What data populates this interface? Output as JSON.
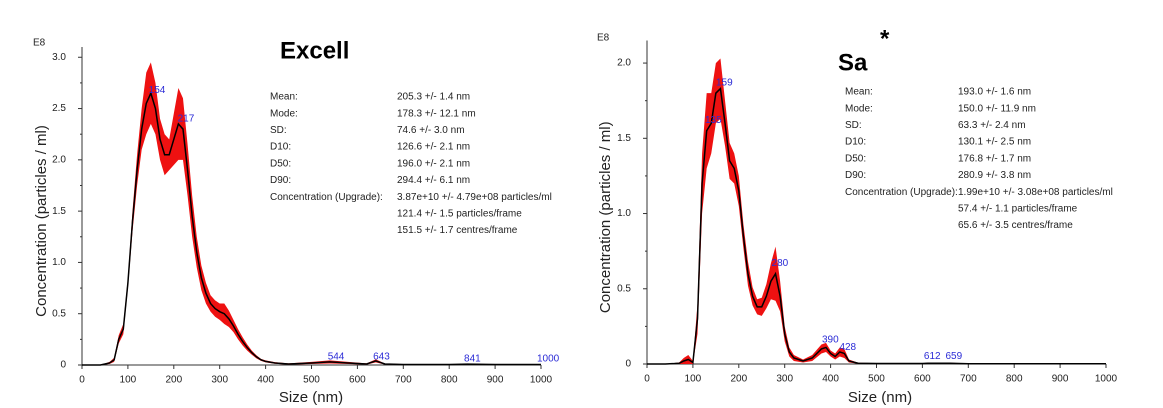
{
  "chart_data": [
    {
      "type": "line",
      "title": "Excell",
      "y_multiplier": "E8",
      "xlabel": "Size (nm)",
      "ylabel": "Concentration (particles / ml)",
      "xlim": [
        0,
        1000
      ],
      "xticks": [
        0,
        100,
        200,
        300,
        400,
        500,
        600,
        700,
        800,
        900,
        1000
      ],
      "ylim": [
        0,
        3.1
      ],
      "yticks": [
        0,
        0.5,
        {
          "value": 1,
          "label": "1.0"
        },
        1.5,
        {
          "value": 2,
          "label": "2.0"
        },
        2.5,
        {
          "value": 3,
          "label": "3.0"
        }
      ],
      "series": [
        {
          "color": "#000000",
          "band_color": "#ee1111",
          "x": [
            0,
            10,
            20,
            30,
            40,
            50,
            60,
            70,
            80,
            90,
            100,
            110,
            120,
            130,
            140,
            150,
            160,
            170,
            180,
            190,
            200,
            210,
            220,
            230,
            240,
            250,
            260,
            270,
            280,
            290,
            300,
            310,
            320,
            330,
            340,
            350,
            360,
            370,
            380,
            390,
            400,
            420,
            450,
            500,
            540,
            580,
            620,
            640,
            660,
            700,
            800,
            840,
            900,
            1000
          ],
          "values": [
            0,
            0,
            0,
            0,
            0,
            0.01,
            0.02,
            0.05,
            0.25,
            0.35,
            0.8,
            1.4,
            1.9,
            2.3,
            2.55,
            2.65,
            2.5,
            2.2,
            2.05,
            2.05,
            2.2,
            2.35,
            2.3,
            1.9,
            1.45,
            1.1,
            0.85,
            0.7,
            0.6,
            0.55,
            0.52,
            0.5,
            0.45,
            0.38,
            0.3,
            0.23,
            0.17,
            0.12,
            0.08,
            0.05,
            0.035,
            0.02,
            0.01,
            0.02,
            0.03,
            0.02,
            0.01,
            0.04,
            0.01,
            0.005,
            0.005,
            0.008,
            0.005,
            0.005
          ],
          "errors": [
            0.005,
            0.005,
            0.005,
            0.005,
            0.005,
            0.005,
            0.01,
            0.02,
            0.04,
            0.05,
            0.05,
            0.1,
            0.15,
            0.2,
            0.3,
            0.3,
            0.25,
            0.2,
            0.2,
            0.15,
            0.25,
            0.35,
            0.3,
            0.25,
            0.2,
            0.15,
            0.12,
            0.1,
            0.08,
            0.08,
            0.08,
            0.1,
            0.08,
            0.06,
            0.05,
            0.04,
            0.03,
            0.02,
            0.015,
            0.01,
            0.01,
            0.008,
            0.006,
            0.01,
            0.015,
            0.01,
            0.006,
            0.015,
            0.005,
            0.003,
            0.003,
            0.004,
            0.003,
            0.003
          ]
        }
      ],
      "peaks": [
        {
          "x": 154,
          "y": 2.65
        },
        {
          "x": 217,
          "y": 2.37
        },
        {
          "x": 544,
          "y": 0.05
        },
        {
          "x": 643,
          "y": 0.05
        },
        {
          "x": 841,
          "y": 0.03
        },
        {
          "x": 1000,
          "y": 0.03
        }
      ],
      "stats": [
        {
          "label": "Mean:",
          "value": "205.3 +/- 1.4 nm"
        },
        {
          "label": "Mode:",
          "value": "178.3 +/- 12.1 nm"
        },
        {
          "label": "SD:",
          "value": "74.6 +/- 3.0 nm"
        },
        {
          "label": "D10:",
          "value": "126.6 +/- 2.1 nm"
        },
        {
          "label": "D50:",
          "value": "196.0 +/- 2.1 nm"
        },
        {
          "label": "D90:",
          "value": "294.4 +/- 6.1 nm"
        },
        {
          "label": "Concentration (Upgrade):",
          "value": "3.87e+10 +/- 4.79e+08 particles/ml"
        },
        {
          "value": "121.4 +/- 1.5 particles/frame"
        },
        {
          "value": "151.5 +/- 1.7 centres/frame"
        }
      ]
    },
    {
      "type": "line",
      "title": "Sa",
      "title_superscript": "*",
      "y_multiplier": "E8",
      "xlabel": "Size (nm)",
      "ylabel": "Concentration (particles / ml)",
      "xlim": [
        0,
        1000
      ],
      "xticks": [
        0,
        100,
        200,
        300,
        400,
        500,
        600,
        700,
        800,
        900,
        1000
      ],
      "ylim": [
        0,
        2.15
      ],
      "yticks": [
        0,
        0.5,
        {
          "value": 1,
          "label": "1.0"
        },
        1.5,
        {
          "value": 2,
          "label": "2.0"
        }
      ],
      "series": [
        {
          "color": "#000000",
          "band_color": "#ee1111",
          "x": [
            0,
            10,
            20,
            30,
            40,
            50,
            60,
            70,
            80,
            90,
            100,
            110,
            120,
            130,
            140,
            150,
            160,
            170,
            180,
            190,
            200,
            210,
            220,
            230,
            240,
            250,
            260,
            270,
            280,
            290,
            300,
            310,
            320,
            340,
            360,
            380,
            390,
            400,
            410,
            420,
            430,
            440,
            460,
            500,
            600,
            612,
            660,
            700,
            1000
          ],
          "values": [
            0,
            0,
            0,
            0,
            0,
            0.002,
            0.003,
            0.005,
            0.02,
            0.03,
            0.01,
            0.3,
            1.2,
            1.55,
            1.6,
            1.8,
            1.83,
            1.6,
            1.35,
            1.3,
            1.15,
            0.85,
            0.6,
            0.45,
            0.38,
            0.38,
            0.45,
            0.55,
            0.6,
            0.45,
            0.2,
            0.08,
            0.04,
            0.02,
            0.04,
            0.1,
            0.11,
            0.07,
            0.05,
            0.08,
            0.07,
            0.02,
            0.005,
            0.003,
            0.003,
            0.005,
            0.005,
            0.002,
            0.002
          ],
          "errors": [
            0.002,
            0.002,
            0.002,
            0.002,
            0.002,
            0.002,
            0.003,
            0.005,
            0.02,
            0.03,
            0.01,
            0.1,
            0.2,
            0.25,
            0.2,
            0.2,
            0.2,
            0.15,
            0.12,
            0.1,
            0.1,
            0.08,
            0.08,
            0.06,
            0.05,
            0.06,
            0.08,
            0.12,
            0.18,
            0.1,
            0.05,
            0.03,
            0.02,
            0.01,
            0.02,
            0.03,
            0.03,
            0.02,
            0.02,
            0.03,
            0.03,
            0.01,
            0.003,
            0.002,
            0.002,
            0.003,
            0.003,
            0.001,
            0.001
          ]
        }
      ],
      "peaks": [
        {
          "x": 159,
          "y": 1.85
        },
        {
          "x": 135,
          "y": 1.6
        },
        {
          "x": 280,
          "y": 0.65
        },
        {
          "x": 390,
          "y": 0.14
        },
        {
          "x": 428,
          "y": 0.09
        },
        {
          "x": 612,
          "y": 0.03
        },
        {
          "x": 659,
          "y": 0.03
        }
      ],
      "stats": [
        {
          "label": "Mean:",
          "value": "193.0 +/- 1.6 nm"
        },
        {
          "label": "Mode:",
          "value": "150.0 +/- 11.9 nm"
        },
        {
          "label": "SD:",
          "value": "63.3 +/- 2.4 nm"
        },
        {
          "label": "D10:",
          "value": "130.1 +/- 2.5 nm"
        },
        {
          "label": "D50:",
          "value": "176.8 +/- 1.7 nm"
        },
        {
          "label": "D90:",
          "value": "280.9 +/- 3.8 nm"
        },
        {
          "label": "Concentration (Upgrade):",
          "value": "1.99e+10 +/- 3.08e+08 particles/ml"
        },
        {
          "value": "57.4 +/- 1.1 particles/frame"
        },
        {
          "value": "65.6 +/- 3.5 centres/frame"
        }
      ]
    }
  ]
}
